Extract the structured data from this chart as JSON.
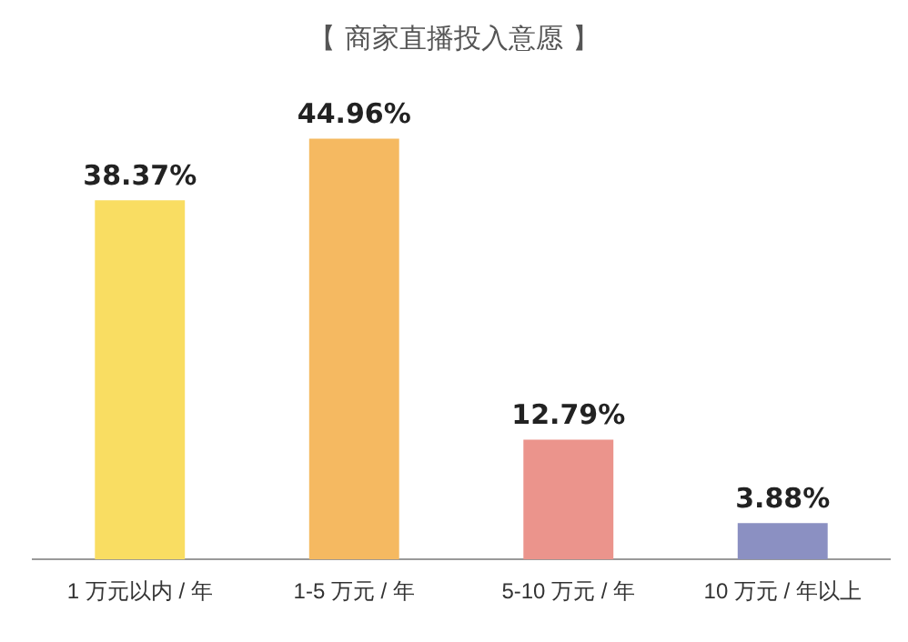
{
  "chart_data": {
    "type": "bar",
    "title": "【 商家直播投入意愿 】",
    "categories": [
      "1 万元以内 / 年",
      "1-5 万元 / 年",
      "5-10 万元 / 年",
      "10 万元 / 年以上"
    ],
    "values": [
      38.37,
      44.96,
      12.79,
      3.88
    ],
    "colors": [
      "#f9dd62",
      "#f5b961",
      "#eb948c",
      "#8b90c2"
    ],
    "value_labels": [
      "38.37%",
      "44.96%",
      "12.79%",
      "3.88%"
    ],
    "relative": false,
    "grid": false,
    "legend": false
  }
}
